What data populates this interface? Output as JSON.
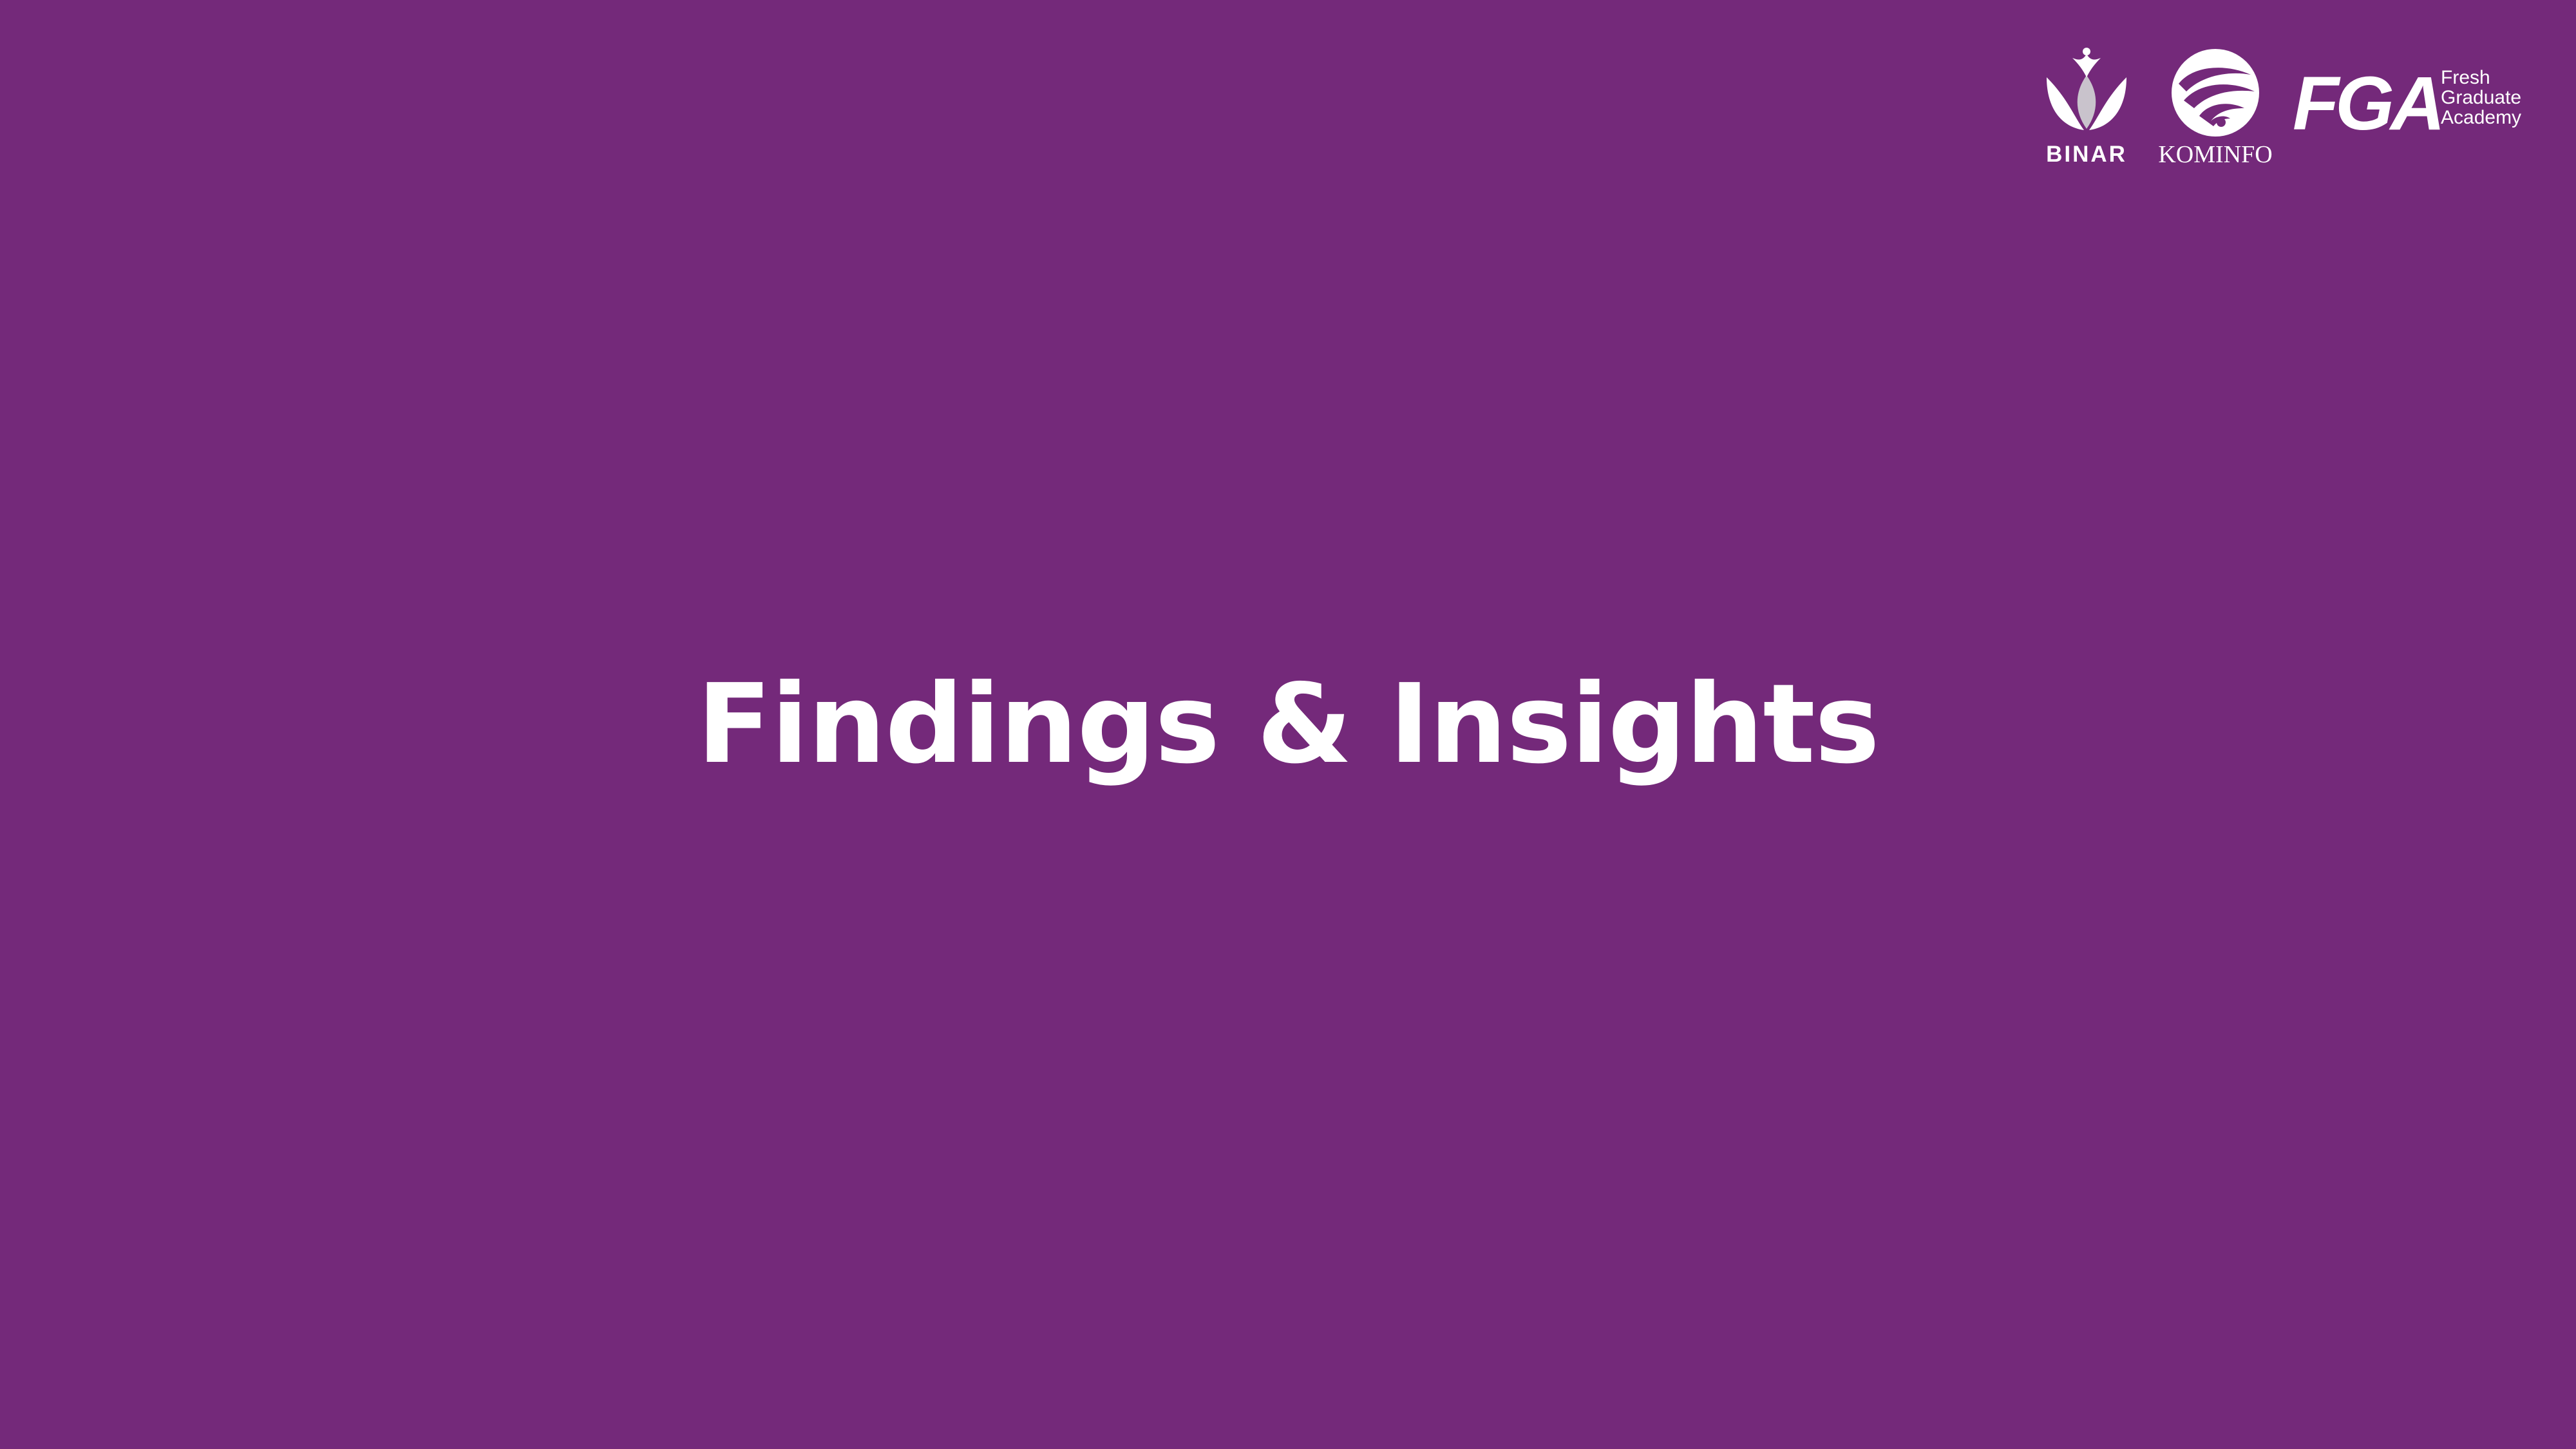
{
  "slide": {
    "title": "Findings & Insights",
    "background_color": "#74297a",
    "text_color": "#ffffff"
  },
  "logos": {
    "binar": {
      "icon": "binar-lotus-icon",
      "wordmark": "BINAR"
    },
    "kominfo": {
      "icon": "kominfo-wave-icon",
      "wordmark": "KOMINFO"
    },
    "fga": {
      "letters": "FGA",
      "line1": "Fresh",
      "line2": "Graduate",
      "line3": "Academy"
    }
  }
}
